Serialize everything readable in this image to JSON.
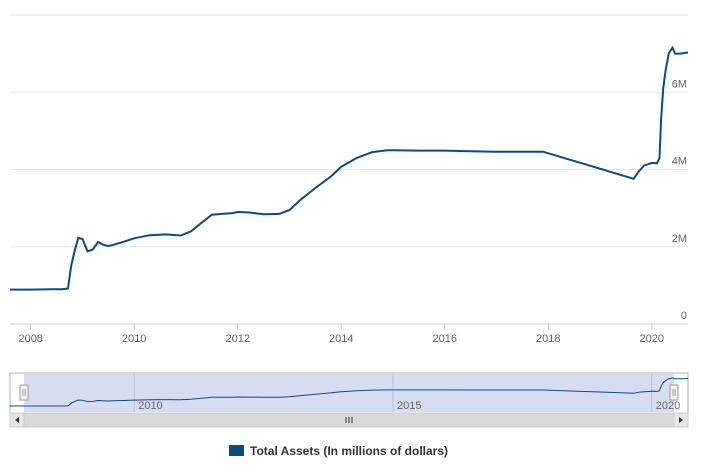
{
  "chart_data": {
    "type": "line",
    "xlim": [
      2007.6,
      2020.7
    ],
    "ylim": [
      0,
      8
    ],
    "y_unit": "M",
    "y_ticks": [
      {
        "value": 0,
        "label": "0"
      },
      {
        "value": 2,
        "label": "2M"
      },
      {
        "value": 4,
        "label": "4M"
      },
      {
        "value": 6,
        "label": "6M"
      }
    ],
    "x_ticks": [
      {
        "value": 2008,
        "label": "2008"
      },
      {
        "value": 2010,
        "label": "2010"
      },
      {
        "value": 2012,
        "label": "2012"
      },
      {
        "value": 2014,
        "label": "2014"
      },
      {
        "value": 2016,
        "label": "2016"
      },
      {
        "value": 2018,
        "label": "2018"
      },
      {
        "value": 2020,
        "label": "2020"
      }
    ],
    "navigator_ticks": [
      {
        "value": 2010,
        "label": "2010"
      },
      {
        "value": 2015,
        "label": "2015"
      },
      {
        "value": 2020,
        "label": "2020"
      }
    ],
    "legend": {
      "position": "bottom-center"
    },
    "grid": {
      "horizontal": true,
      "vertical": false
    },
    "colors": {
      "line": "#0d4a80",
      "navigator_fill": "#cfd7ef",
      "navigator_mask": "#dfe5f5",
      "scrollbar": "#d9d9d9"
    },
    "series": [
      {
        "name": "Total Assets (In millions of dollars)",
        "x": [
          2007.6,
          2008.0,
          2008.4,
          2008.6,
          2008.72,
          2008.78,
          2008.85,
          2008.92,
          2009.0,
          2009.1,
          2009.2,
          2009.3,
          2009.4,
          2009.5,
          2009.6,
          2009.8,
          2010.0,
          2010.3,
          2010.6,
          2010.9,
          2011.1,
          2011.3,
          2011.5,
          2011.7,
          2011.9,
          2012.0,
          2012.2,
          2012.5,
          2012.8,
          2013.0,
          2013.2,
          2013.5,
          2013.8,
          2014.0,
          2014.3,
          2014.6,
          2014.9,
          2015.0,
          2015.5,
          2016.0,
          2016.5,
          2017.0,
          2017.5,
          2017.9,
          2018.3,
          2018.7,
          2019.0,
          2019.4,
          2019.65,
          2019.75,
          2019.85,
          2020.0,
          2020.1,
          2020.15,
          2020.18,
          2020.22,
          2020.27,
          2020.33,
          2020.4,
          2020.45,
          2020.55,
          2020.7
        ],
        "values": [
          0.89,
          0.89,
          0.9,
          0.9,
          0.92,
          1.5,
          1.9,
          2.23,
          2.2,
          1.88,
          1.93,
          2.12,
          2.05,
          2.02,
          2.05,
          2.13,
          2.22,
          2.3,
          2.32,
          2.29,
          2.4,
          2.62,
          2.83,
          2.85,
          2.87,
          2.9,
          2.89,
          2.84,
          2.85,
          2.95,
          3.2,
          3.52,
          3.82,
          4.07,
          4.3,
          4.45,
          4.5,
          4.5,
          4.49,
          4.49,
          4.47,
          4.46,
          4.46,
          4.46,
          4.3,
          4.14,
          4.02,
          3.86,
          3.76,
          3.95,
          4.1,
          4.17,
          4.16,
          4.3,
          5.3,
          6.1,
          6.58,
          7.02,
          7.15,
          7.0,
          7.0,
          7.03
        ]
      }
    ]
  }
}
